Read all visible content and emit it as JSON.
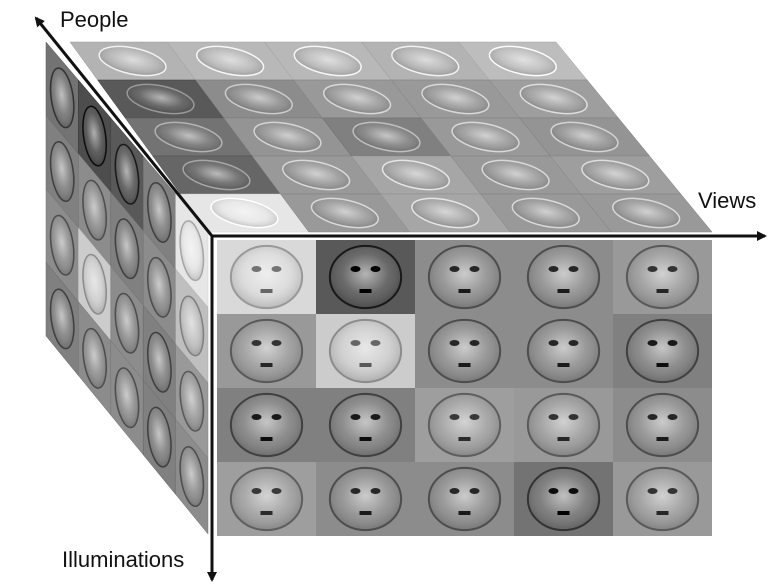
{
  "axes": {
    "people": "People",
    "views": "Views",
    "illuminations": "Illuminations"
  },
  "cube": {
    "rows": 4,
    "cols": 5,
    "depth": 5,
    "front_tiles": [
      [
        0.85,
        0.35,
        0.55,
        0.55,
        0.6
      ],
      [
        0.6,
        0.8,
        0.55,
        0.55,
        0.5
      ],
      [
        0.5,
        0.5,
        0.62,
        0.6,
        0.55
      ],
      [
        0.62,
        0.55,
        0.55,
        0.45,
        0.6
      ]
    ],
    "top_tiles": [
      [
        0.7,
        0.72,
        0.72,
        0.7,
        0.74
      ],
      [
        0.35,
        0.55,
        0.6,
        0.6,
        0.62
      ],
      [
        0.45,
        0.58,
        0.5,
        0.6,
        0.58
      ],
      [
        0.4,
        0.6,
        0.65,
        0.6,
        0.62
      ],
      [
        0.9,
        0.6,
        0.65,
        0.6,
        0.6
      ]
    ],
    "side_tiles": [
      [
        0.45,
        0.3,
        0.35,
        0.5,
        0.9
      ],
      [
        0.5,
        0.55,
        0.5,
        0.55,
        0.75
      ],
      [
        0.55,
        0.8,
        0.55,
        0.5,
        0.6
      ],
      [
        0.5,
        0.55,
        0.55,
        0.5,
        0.55
      ]
    ]
  },
  "colors": {
    "axis": "#111111",
    "tile_base": "#8c8c8c"
  }
}
